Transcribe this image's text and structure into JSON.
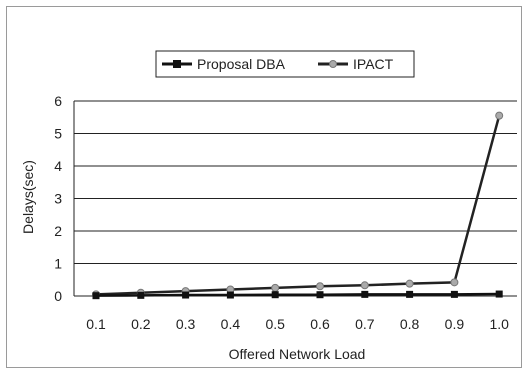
{
  "chart_data": {
    "type": "line",
    "title": "",
    "xlabel": "Offered Network Load",
    "ylabel": "Delays(sec)",
    "x": [
      0.1,
      0.2,
      0.3,
      0.4,
      0.5,
      0.6,
      0.7,
      0.8,
      0.9,
      1.0
    ],
    "x_tick_labels": [
      "0.1",
      "0.2",
      "0.3",
      "0.4",
      "0.5",
      "0.6",
      "0.7",
      "0.8",
      "0.9",
      "1.0"
    ],
    "y_ticks": [
      0,
      1,
      2,
      3,
      4,
      5,
      6
    ],
    "ylim": [
      0,
      6
    ],
    "grid": "horizontal",
    "legend_position": "top",
    "series": [
      {
        "name": "Proposal DBA",
        "color": "#111111",
        "marker": "square",
        "values": [
          0.01,
          0.02,
          0.03,
          0.03,
          0.04,
          0.04,
          0.05,
          0.05,
          0.05,
          0.06
        ]
      },
      {
        "name": "IPACT",
        "color": "#222222",
        "marker_color": "#aaaaaa",
        "marker": "circle",
        "values": [
          0.05,
          0.1,
          0.15,
          0.2,
          0.25,
          0.3,
          0.33,
          0.38,
          0.42,
          5.55
        ]
      }
    ]
  }
}
